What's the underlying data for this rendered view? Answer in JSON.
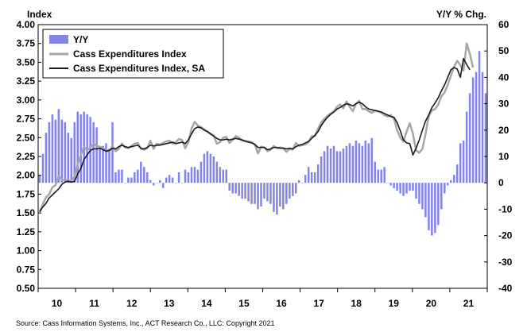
{
  "chart_data": {
    "type": "bar",
    "title": "",
    "left_axis_title": "Index",
    "right_axis_title": "Y/Y % Chg.",
    "source": "Source: Cass Information Systems, Inc., ACT Research Co., LLC: Copyright 2021",
    "x_tick_labels": [
      "10",
      "11",
      "12",
      "13",
      "14",
      "15",
      "16",
      "17",
      "18",
      "19",
      "20",
      "21"
    ],
    "left_ylim": [
      0.5,
      4.0
    ],
    "left_ticks": [
      "0.50",
      "0.75",
      "1.00",
      "1.25",
      "1.50",
      "1.75",
      "2.00",
      "2.25",
      "2.50",
      "2.75",
      "3.00",
      "3.25",
      "3.50",
      "3.75",
      "4.00"
    ],
    "right_ylim": [
      -40,
      60
    ],
    "right_ticks": [
      "-40",
      "-30",
      "-20",
      "-10",
      "0",
      "10",
      "20",
      "30",
      "40",
      "50",
      "60"
    ],
    "legend": [
      "Y/Y",
      "Cass Expenditures Index",
      "Cass Expenditures Index, SA"
    ],
    "grid": false,
    "colors": {
      "yoy": "#8383e8",
      "index": "#a6a6a6",
      "index_sa": "#1a1a1a"
    },
    "series": [
      {
        "name": "Y/Y",
        "axis": "right",
        "values": [
          3,
          11,
          19,
          23,
          26,
          24,
          28,
          24,
          23,
          19,
          17,
          23,
          27,
          26,
          27,
          26,
          25,
          23,
          21,
          14,
          14,
          15,
          13,
          23,
          4,
          5,
          5,
          0,
          2,
          2,
          4,
          5,
          8,
          6,
          4,
          1,
          -1,
          0,
          1,
          -2,
          2,
          3,
          2,
          0,
          4,
          0,
          5,
          4,
          6,
          6,
          5,
          8,
          11,
          12,
          11,
          10,
          8,
          6,
          5,
          5,
          -3,
          -4,
          -4,
          -5,
          -6,
          -6,
          -7,
          -8,
          -8,
          -10,
          -9,
          -6,
          -7,
          -8,
          -11,
          -12,
          -9,
          -10,
          -8,
          -6,
          -5,
          -4,
          1,
          0,
          3,
          6,
          4,
          4,
          7,
          10,
          12,
          14,
          13,
          14,
          12,
          12,
          13,
          14,
          15,
          14,
          16,
          15,
          14,
          16,
          15,
          17,
          8,
          5,
          5,
          6,
          0,
          -1,
          -2,
          -3,
          -4,
          -5,
          -4,
          -3,
          -3,
          -6,
          -8,
          -10,
          -13,
          -18,
          -20,
          -19,
          -16,
          -10,
          -4,
          -1,
          1,
          3,
          7,
          15,
          16,
          27,
          34,
          40,
          42,
          50,
          42,
          34
        ]
      },
      {
        "name": "Cass Expenditures Index",
        "axis": "left",
        "values": [
          1.51,
          1.62,
          1.71,
          1.75,
          1.84,
          1.87,
          1.99,
          1.94,
          1.94,
          1.93,
          1.93,
          1.98,
          2.15,
          2.27,
          2.38,
          2.33,
          2.37,
          2.42,
          2.39,
          2.38,
          2.36,
          2.34,
          2.31,
          2.39,
          2.32,
          2.35,
          2.42,
          2.37,
          2.36,
          2.39,
          2.42,
          2.43,
          2.35,
          2.34,
          2.36,
          2.46,
          2.35,
          2.42,
          2.41,
          2.43,
          2.45,
          2.46,
          2.42,
          2.44,
          2.48,
          2.47,
          2.36,
          2.44,
          2.62,
          2.71,
          2.66,
          2.64,
          2.61,
          2.58,
          2.55,
          2.53,
          2.42,
          2.44,
          2.5,
          2.51,
          2.43,
          2.47,
          2.52,
          2.5,
          2.46,
          2.46,
          2.45,
          2.44,
          2.41,
          2.29,
          2.38,
          2.37,
          2.32,
          2.34,
          2.39,
          2.36,
          2.37,
          2.36,
          2.31,
          2.35,
          2.34,
          2.43,
          2.39,
          2.4,
          2.41,
          2.44,
          2.52,
          2.52,
          2.62,
          2.7,
          2.75,
          2.79,
          2.82,
          2.85,
          2.91,
          2.94,
          2.89,
          2.98,
          2.91,
          2.85,
          2.95,
          2.99,
          2.88,
          2.88,
          2.85,
          2.83,
          2.86,
          2.85,
          2.83,
          2.8,
          2.78,
          2.8,
          2.75,
          2.6,
          2.5,
          2.45,
          2.58,
          2.69,
          2.55,
          2.33,
          2.3,
          2.35,
          2.55,
          2.79,
          2.86,
          2.88,
          2.94,
          3.05,
          3.1,
          3.2,
          3.32,
          3.44,
          3.52,
          3.46,
          3.39,
          3.75,
          3.61,
          3.43
        ]
      },
      {
        "name": "Cass Expenditures Index, SA",
        "axis": "left",
        "values": [
          1.52,
          1.58,
          1.63,
          1.7,
          1.74,
          1.78,
          1.82,
          1.88,
          1.91,
          1.92,
          1.91,
          1.92,
          2.02,
          2.09,
          2.21,
          2.27,
          2.33,
          2.35,
          2.35,
          2.36,
          2.34,
          2.32,
          2.33,
          2.36,
          2.35,
          2.38,
          2.4,
          2.38,
          2.37,
          2.38,
          2.39,
          2.4,
          2.36,
          2.35,
          2.37,
          2.4,
          2.39,
          2.4,
          2.4,
          2.41,
          2.42,
          2.43,
          2.44,
          2.42,
          2.43,
          2.44,
          2.42,
          2.47,
          2.55,
          2.62,
          2.64,
          2.63,
          2.6,
          2.58,
          2.55,
          2.52,
          2.49,
          2.47,
          2.47,
          2.48,
          2.47,
          2.48,
          2.49,
          2.48,
          2.47,
          2.45,
          2.44,
          2.43,
          2.41,
          2.37,
          2.37,
          2.37,
          2.34,
          2.35,
          2.37,
          2.37,
          2.36,
          2.36,
          2.35,
          2.36,
          2.35,
          2.38,
          2.4,
          2.41,
          2.43,
          2.45,
          2.49,
          2.53,
          2.58,
          2.66,
          2.72,
          2.77,
          2.81,
          2.84,
          2.88,
          2.9,
          2.93,
          2.95,
          2.94,
          2.92,
          2.95,
          2.97,
          2.95,
          2.91,
          2.88,
          2.87,
          2.86,
          2.85,
          2.84,
          2.82,
          2.8,
          2.78,
          2.77,
          2.7,
          2.59,
          2.47,
          2.43,
          2.42,
          2.27,
          2.36,
          2.47,
          2.6,
          2.72,
          2.8,
          2.9,
          2.96,
          3.03,
          3.12,
          3.2,
          3.3,
          3.4,
          3.43,
          3.41,
          3.3,
          3.55,
          3.47,
          3.4
        ]
      }
    ]
  }
}
